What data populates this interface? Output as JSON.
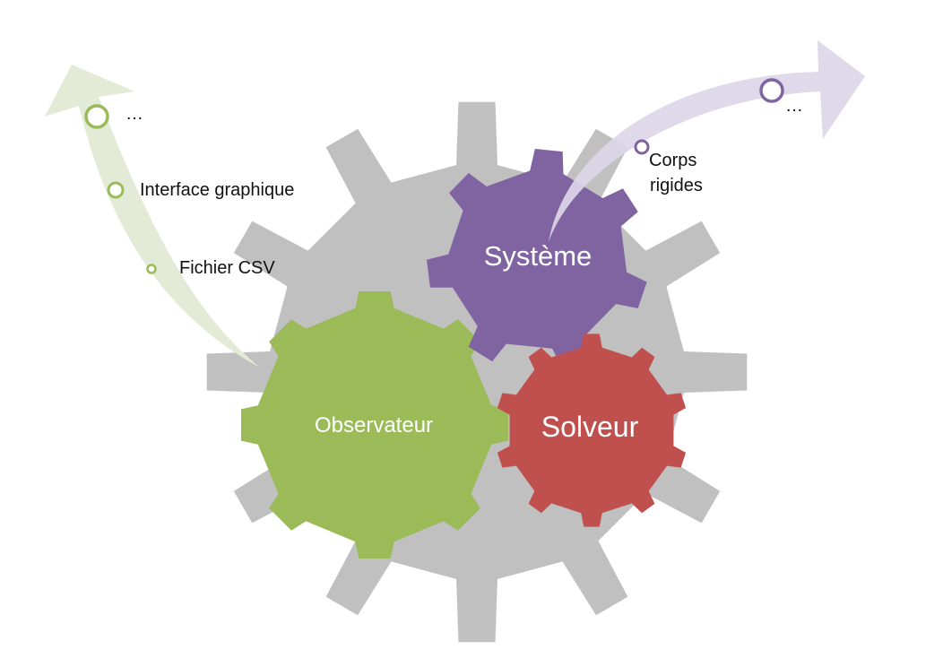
{
  "colors": {
    "background_gear": "#c0c0c0",
    "observateur": "#9bbb59",
    "systeme": "#8064a2",
    "solveur": "#c0504d",
    "green_arrow": "#e3ead6",
    "green_marker": "#9bbb59",
    "purple_arrow": "#dcd6e8",
    "purple_marker": "#8064a2",
    "gear_text": "#ffffff",
    "note_text": "#111111"
  },
  "gears": {
    "observateur": {
      "label": "Observateur"
    },
    "systeme": {
      "label": "Système"
    },
    "solveur": {
      "label": "Solveur"
    }
  },
  "green_arrow": {
    "items": [
      "…",
      "Interface graphique",
      "Fichier CSV"
    ]
  },
  "purple_arrow": {
    "items": [
      "…",
      "Corps",
      "rigides"
    ]
  }
}
